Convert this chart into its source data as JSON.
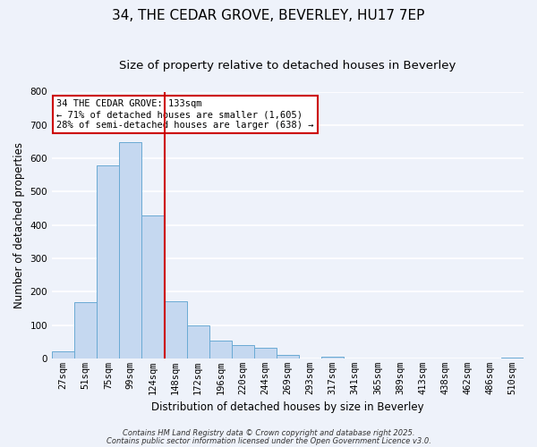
{
  "title": "34, THE CEDAR GROVE, BEVERLEY, HU17 7EP",
  "subtitle": "Size of property relative to detached houses in Beverley",
  "xlabel": "Distribution of detached houses by size in Beverley",
  "ylabel": "Number of detached properties",
  "bar_labels": [
    "27sqm",
    "51sqm",
    "75sqm",
    "99sqm",
    "124sqm",
    "148sqm",
    "172sqm",
    "196sqm",
    "220sqm",
    "244sqm",
    "269sqm",
    "293sqm",
    "317sqm",
    "341sqm",
    "365sqm",
    "389sqm",
    "413sqm",
    "438sqm",
    "462sqm",
    "486sqm",
    "510sqm"
  ],
  "bar_values": [
    20,
    168,
    580,
    648,
    430,
    172,
    100,
    52,
    40,
    33,
    10,
    0,
    5,
    0,
    0,
    0,
    0,
    0,
    0,
    0,
    3
  ],
  "bar_color": "#c5d8f0",
  "bar_edge_color": "#6aaad4",
  "vline_x": 4.5,
  "vline_color": "#cc0000",
  "ylim": [
    0,
    800
  ],
  "yticks": [
    0,
    100,
    200,
    300,
    400,
    500,
    600,
    700,
    800
  ],
  "annotation_title": "34 THE CEDAR GROVE: 133sqm",
  "annotation_line1": "← 71% of detached houses are smaller (1,605)",
  "annotation_line2": "28% of semi-detached houses are larger (638) →",
  "annotation_box_color": "#ffffff",
  "annotation_box_edge": "#cc0000",
  "footer1": "Contains HM Land Registry data © Crown copyright and database right 2025.",
  "footer2": "Contains public sector information licensed under the Open Government Licence v3.0.",
  "background_color": "#eef2fa",
  "grid_color": "#ffffff",
  "title_fontsize": 11,
  "subtitle_fontsize": 9.5,
  "ylabel_fontsize": 8.5,
  "xlabel_fontsize": 8.5,
  "tick_fontsize": 7.5,
  "annot_fontsize": 7.5,
  "footer_fontsize": 6.0
}
